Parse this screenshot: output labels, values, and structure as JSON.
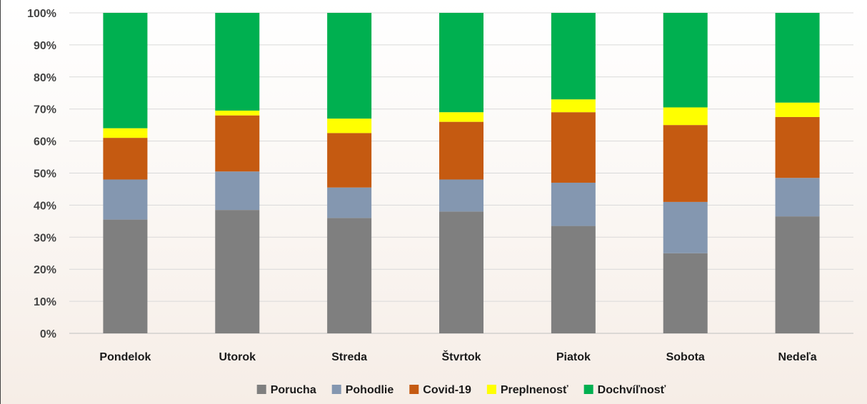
{
  "chart_data": {
    "type": "bar",
    "stacked": true,
    "categories": [
      "Pondelok",
      "Utorok",
      "Streda",
      "Štvrtok",
      "Piatok",
      "Sobota",
      "Nedeľa"
    ],
    "series": [
      {
        "name": "Porucha",
        "color": "#7f7f7f",
        "values": [
          35.5,
          38.5,
          36.0,
          38.0,
          33.5,
          25.0,
          36.5
        ]
      },
      {
        "name": "Pohodlie",
        "color": "#8497b0",
        "values": [
          12.5,
          12.0,
          9.5,
          10.0,
          13.5,
          16.0,
          12.0
        ]
      },
      {
        "name": "Covid-19",
        "color": "#c55a11",
        "values": [
          13.0,
          17.5,
          17.0,
          18.0,
          22.0,
          24.0,
          19.0
        ]
      },
      {
        "name": "Preplnenosť",
        "color": "#ffff00",
        "values": [
          3.0,
          1.5,
          4.5,
          3.0,
          4.0,
          5.5,
          4.5
        ]
      },
      {
        "name": "Dochvíľnosť",
        "color": "#00b050",
        "values": [
          36.0,
          30.5,
          33.0,
          31.0,
          27.0,
          29.5,
          28.0
        ]
      }
    ],
    "yticks": [
      "0%",
      "10%",
      "20%",
      "30%",
      "40%",
      "50%",
      "60%",
      "70%",
      "80%",
      "90%",
      "100%"
    ],
    "ylim": [
      0,
      100
    ],
    "grid": true,
    "legend_position": "bottom"
  }
}
